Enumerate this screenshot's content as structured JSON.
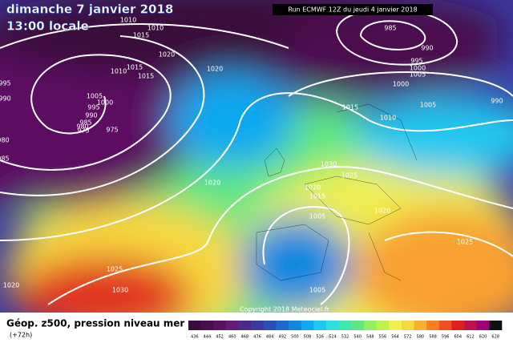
{
  "header": {
    "date": "dimanche 7 janvier 2018",
    "time": "13:00 locale",
    "run": "Run ECMWF 12Z du jeudi 4 janvier 2018"
  },
  "footer": {
    "title": "Géop. z500, pression niveau mer",
    "lead": "(+72h)",
    "copyright": "Copyright 2018 Meteociel.fr"
  },
  "isobar_labels": [
    "1010",
    "1015",
    "1010",
    "1020",
    "1015",
    "1010",
    "1015",
    "1020",
    "995",
    "990",
    "1005",
    "1000",
    "995",
    "990",
    "985",
    "980",
    "975",
    "975",
    "980",
    "985",
    "985",
    "990",
    "995",
    "1000",
    "1005",
    "1000",
    "990",
    "1005",
    "1015",
    "1010",
    "1030",
    "1025",
    "1020",
    "1020",
    "1015",
    "1005",
    "1020",
    "1025",
    "1025",
    "1030",
    "1020",
    "1005"
  ],
  "colorbar": {
    "labels": [
      "436",
      "444",
      "452",
      "460",
      "468",
      "476",
      "484",
      "492",
      "500",
      "508",
      "516",
      "524",
      "532",
      "540",
      "548",
      "556",
      "564",
      "572",
      "580",
      "588",
      "596",
      "604",
      "612",
      "620",
      "628"
    ],
    "colors": [
      "#3a0a3a",
      "#4b0c4e",
      "#5c1062",
      "#661a78",
      "#4a2a8c",
      "#3a3aa0",
      "#2a50b8",
      "#1a6ad0",
      "#1088e0",
      "#10a8f0",
      "#20c8f0",
      "#30e0e0",
      "#40e8b0",
      "#60e880",
      "#90f060",
      "#c0f050",
      "#f0f050",
      "#f8d840",
      "#f8b030",
      "#f88020",
      "#f05020",
      "#e02020",
      "#c01050",
      "#a00080",
      "#101010"
    ]
  }
}
